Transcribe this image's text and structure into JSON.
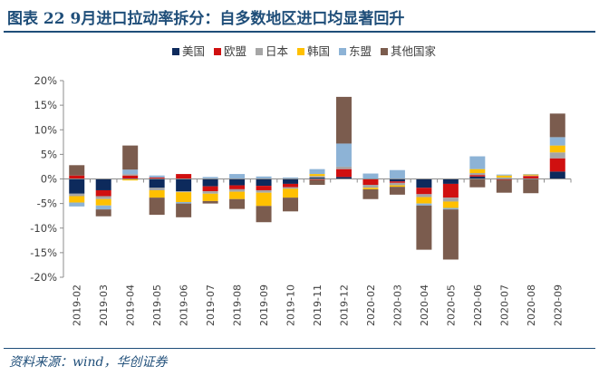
{
  "title": "图表 22   9月进口拉动率拆分：自多数地区进口均显著回升",
  "source": "资料来源：wind，华创证券",
  "chart_data": {
    "type": "bar",
    "stacked": true,
    "title": "",
    "xlabel": "",
    "ylabel": "",
    "ylim": [
      -20,
      20
    ],
    "yticks": [
      "20%",
      "15%",
      "10%",
      "5%",
      "0%",
      "-5%",
      "-10%",
      "-15%",
      "-20%"
    ],
    "grid": false,
    "legend_position": "top",
    "categories": [
      "2019-02",
      "2019-03",
      "2019-04",
      "2019-05",
      "2019-06",
      "2019-07",
      "2019-08",
      "2019-09",
      "2019-10",
      "2019-11",
      "2019-12",
      "2020-02",
      "2020-03",
      "2020-04",
      "2020-05",
      "2020-06",
      "2020-07",
      "2020-08",
      "2020-09"
    ],
    "series": [
      {
        "name": "美国",
        "color": "#0d2a5c",
        "values": [
          -3.0,
          -2.3,
          0.0,
          -1.8,
          -2.5,
          -1.5,
          -1.3,
          -1.4,
          -1.0,
          0.3,
          0.4,
          0.0,
          -0.5,
          -1.8,
          -1.0,
          0.5,
          0.1,
          0.1,
          1.5
        ]
      },
      {
        "name": "欧盟",
        "color": "#d01010",
        "values": [
          0.7,
          -1.2,
          0.7,
          0.3,
          1.0,
          -1.0,
          -0.8,
          -0.9,
          -0.7,
          -0.2,
          1.6,
          -1.2,
          -0.3,
          -1.3,
          -2.8,
          0.3,
          -0.2,
          0.5,
          2.7
        ]
      },
      {
        "name": "日本",
        "color": "#a6a6a6",
        "values": [
          -0.5,
          -0.6,
          0.3,
          -0.5,
          -0.2,
          -0.5,
          -0.5,
          -0.5,
          -0.3,
          0.3,
          0.5,
          -0.6,
          -0.5,
          -0.6,
          -0.8,
          0.4,
          0.2,
          0.1,
          1.2
        ]
      },
      {
        "name": "韩国",
        "color": "#ffc000",
        "values": [
          -1.3,
          -1.3,
          -0.3,
          -1.5,
          -2.0,
          -1.5,
          -1.5,
          -2.7,
          -1.8,
          0.4,
          0.0,
          -0.3,
          -0.3,
          -1.3,
          -1.3,
          0.8,
          0.4,
          0.2,
          1.4
        ]
      },
      {
        "name": "东盟",
        "color": "#8db3d6",
        "values": [
          -0.8,
          -0.8,
          0.9,
          0.4,
          -0.3,
          0.4,
          1.0,
          0.5,
          0.3,
          1.0,
          4.7,
          1.1,
          1.8,
          -0.4,
          -0.3,
          2.6,
          0.2,
          0.1,
          1.7
        ]
      },
      {
        "name": "其他国家",
        "color": "#7b5c4e",
        "values": [
          2.1,
          -1.4,
          4.9,
          -3.5,
          -2.8,
          -0.5,
          -2.0,
          -3.3,
          -2.8,
          -1.0,
          9.5,
          -2.0,
          -1.6,
          -9.0,
          -10.2,
          -1.7,
          -2.6,
          -2.9,
          4.8
        ]
      }
    ]
  }
}
